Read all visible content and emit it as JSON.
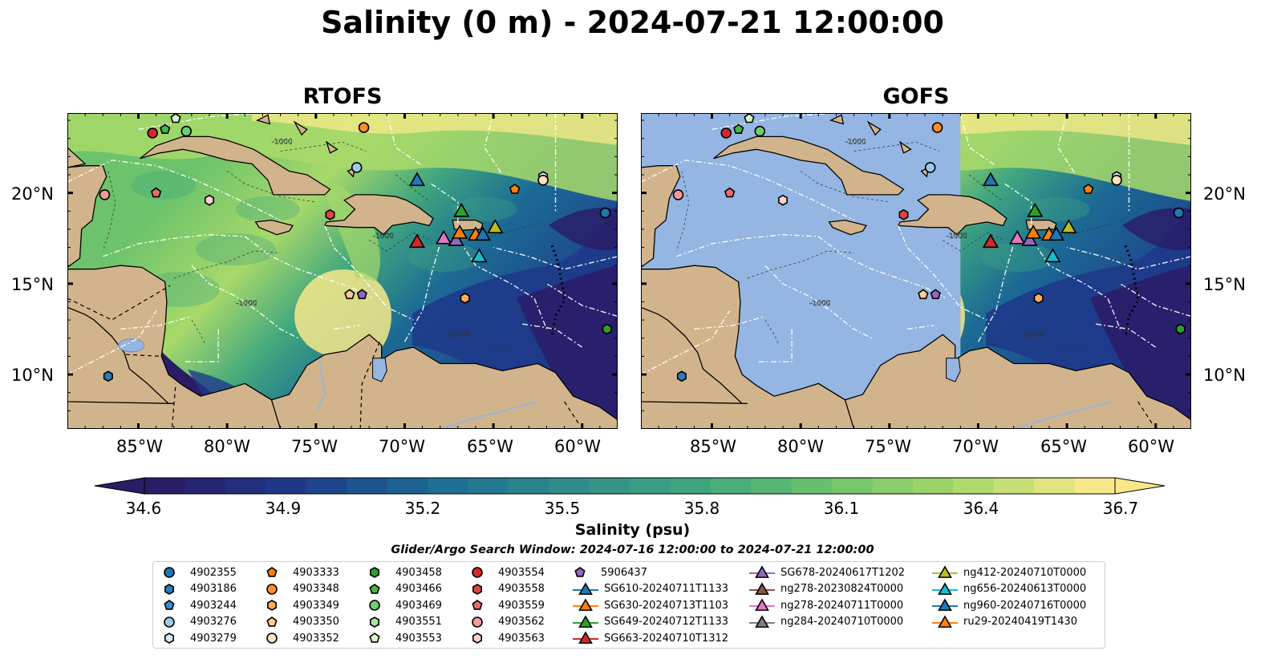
{
  "title": "Salinity (0 m) - 2024-07-21 12:00:00",
  "panels": [
    {
      "id": "rtofs",
      "title": "RTOFS"
    },
    {
      "id": "gofs",
      "title": "GOFS"
    }
  ],
  "lat_labels": [
    "20°N",
    "15°N",
    "10°N"
  ],
  "lon_labels": [
    "85°W",
    "80°W",
    "75°W",
    "70°W",
    "65°W",
    "60°W"
  ],
  "colorbar": {
    "label": "Salinity (psu)",
    "ticks": [
      "34.6",
      "34.9",
      "35.2",
      "35.5",
      "35.8",
      "36.1",
      "36.4",
      "36.7"
    ],
    "range": [
      34.6,
      36.7
    ],
    "colors": [
      "#2a1c66",
      "#1e3a8a",
      "#1c6b94",
      "#2f8a8a",
      "#3fa67f",
      "#6cc36b",
      "#a8d96a",
      "#f7e98a"
    ]
  },
  "search_window": "Glider/Argo Search Window: 2024-07-16 12:00:00 to 2024-07-21 12:00:00",
  "land_color": "#d2b48c",
  "mask_color": "#95b6e2",
  "legend": [
    {
      "label": "4902355",
      "marker": "circle",
      "color": "#1f77b4"
    },
    {
      "label": "4903186",
      "marker": "hexagon",
      "color": "#2b7bba"
    },
    {
      "label": "4903244",
      "marker": "pentagon",
      "color": "#3b8bd0"
    },
    {
      "label": "4903276",
      "marker": "circle",
      "color": "#9ecae9"
    },
    {
      "label": "4903279",
      "marker": "hexagon",
      "color": "#d6eaf8"
    },
    {
      "label": "4903333",
      "marker": "pentagon",
      "color": "#ff7f0e"
    },
    {
      "label": "4903348",
      "marker": "circle",
      "color": "#ff8c2e"
    },
    {
      "label": "4903349",
      "marker": "hexagon",
      "color": "#ffac5e"
    },
    {
      "label": "4903350",
      "marker": "pentagon",
      "color": "#ffc98f"
    },
    {
      "label": "4903352",
      "marker": "circle",
      "color": "#ffe2c0"
    },
    {
      "label": "4903458",
      "marker": "hexagon",
      "color": "#2ca02c"
    },
    {
      "label": "4903466",
      "marker": "pentagon",
      "color": "#45b545"
    },
    {
      "label": "4903469",
      "marker": "circle",
      "color": "#6fcf6f"
    },
    {
      "label": "4903551",
      "marker": "hexagon",
      "color": "#a6e6a0"
    },
    {
      "label": "4903553",
      "marker": "pentagon",
      "color": "#d8f7c8"
    },
    {
      "label": "4903554",
      "marker": "circle",
      "color": "#d62728"
    },
    {
      "label": "4903558",
      "marker": "hexagon",
      "color": "#e04545"
    },
    {
      "label": "4903559",
      "marker": "pentagon",
      "color": "#ea6a6a"
    },
    {
      "label": "4903562",
      "marker": "circle",
      "color": "#f59a9a"
    },
    {
      "label": "4903563",
      "marker": "hexagon",
      "color": "#fbd0d0"
    },
    {
      "label": "5906437",
      "marker": "pentagon",
      "color": "#9467bd"
    },
    {
      "label": "SG610-20240711T1133",
      "marker": "triangle-line",
      "color": "#1f77b4"
    },
    {
      "label": "SG630-20240713T1103",
      "marker": "triangle-line",
      "color": "#ff7f0e"
    },
    {
      "label": "SG649-20240712T1133",
      "marker": "triangle-line",
      "color": "#2ca02c"
    },
    {
      "label": "SG663-20240710T1312",
      "marker": "triangle-line",
      "color": "#d62728"
    },
    {
      "label": "SG678-20240617T1202",
      "marker": "triangle-line",
      "color": "#9467bd"
    },
    {
      "label": "ng278-20230824T0000",
      "marker": "triangle-line",
      "color": "#8c564b"
    },
    {
      "label": "ng278-20240711T0000",
      "marker": "triangle-line",
      "color": "#e377c2"
    },
    {
      "label": "ng284-20240710T0000",
      "marker": "triangle-line",
      "color": "#7f7f7f"
    },
    {
      "label": "ng412-20240710T0000",
      "marker": "triangle-line",
      "color": "#bcbd22"
    },
    {
      "label": "ng656-20240613T0000",
      "marker": "triangle-line",
      "color": "#17becf"
    },
    {
      "label": "ng960-20240716T0000",
      "marker": "triangle-line",
      "color": "#1f77b4"
    },
    {
      "label": "ru29-20240419T1430",
      "marker": "triangle-line",
      "color": "#ff7f0e"
    }
  ],
  "floats": [
    {
      "id": "4903554",
      "lon": -84.2,
      "lat": 23.3
    },
    {
      "id": "4903466",
      "lon": -83.5,
      "lat": 23.5
    },
    {
      "id": "4903553",
      "lon": -82.9,
      "lat": 24.1
    },
    {
      "id": "4903469",
      "lon": -82.3,
      "lat": 23.4
    },
    {
      "id": "4903348",
      "lon": -72.3,
      "lat": 23.6
    },
    {
      "id": "4903276",
      "lon": -72.7,
      "lat": 21.4
    },
    {
      "id": "4903562",
      "lon": -86.9,
      "lat": 19.9
    },
    {
      "id": "4903559",
      "lon": -84.0,
      "lat": 20.0
    },
    {
      "id": "4903563",
      "lon": -81.0,
      "lat": 19.6
    },
    {
      "id": "4903558",
      "lon": -74.2,
      "lat": 18.8
    },
    {
      "id": "4903333",
      "lon": -63.8,
      "lat": 20.2
    },
    {
      "id": "4903279",
      "lon": -62.2,
      "lat": 20.9
    },
    {
      "id": "4903352",
      "lon": -62.2,
      "lat": 20.7
    },
    {
      "id": "4902355",
      "lon": -58.7,
      "lat": 18.9
    },
    {
      "id": "4903350",
      "lon": -73.1,
      "lat": 14.4
    },
    {
      "id": "5906437",
      "lon": -72.4,
      "lat": 14.4
    },
    {
      "id": "4903349",
      "lon": -66.6,
      "lat": 14.2
    },
    {
      "id": "4903458",
      "lon": -58.6,
      "lat": 12.5
    },
    {
      "id": "4903186",
      "lon": -86.7,
      "lat": 9.9
    }
  ],
  "gliders": [
    {
      "id": "ng960-20240716T0000",
      "lon": -69.3,
      "lat": 20.7
    },
    {
      "id": "SG649-20240712T1133",
      "lon": -66.8,
      "lat": 19.0
    },
    {
      "id": "ng412-20240710T0000",
      "lon": -64.9,
      "lat": 18.1
    },
    {
      "id": "ng278-20240711T0000",
      "lon": -67.8,
      "lat": 17.5
    },
    {
      "id": "SG678-20240617T1202",
      "lon": -67.1,
      "lat": 17.4
    },
    {
      "id": "ru29-20240419T1430",
      "lon": -66.9,
      "lat": 17.8
    },
    {
      "id": "SG630-20240713T1103",
      "lon": -66.0,
      "lat": 17.7
    },
    {
      "id": "SG610-20240711T1133",
      "lon": -65.6,
      "lat": 17.7
    },
    {
      "id": "SG663-20240710T1312",
      "lon": -69.3,
      "lat": 17.3
    },
    {
      "id": "ng656-20240613T0000",
      "lon": -65.8,
      "lat": 16.5
    }
  ]
}
